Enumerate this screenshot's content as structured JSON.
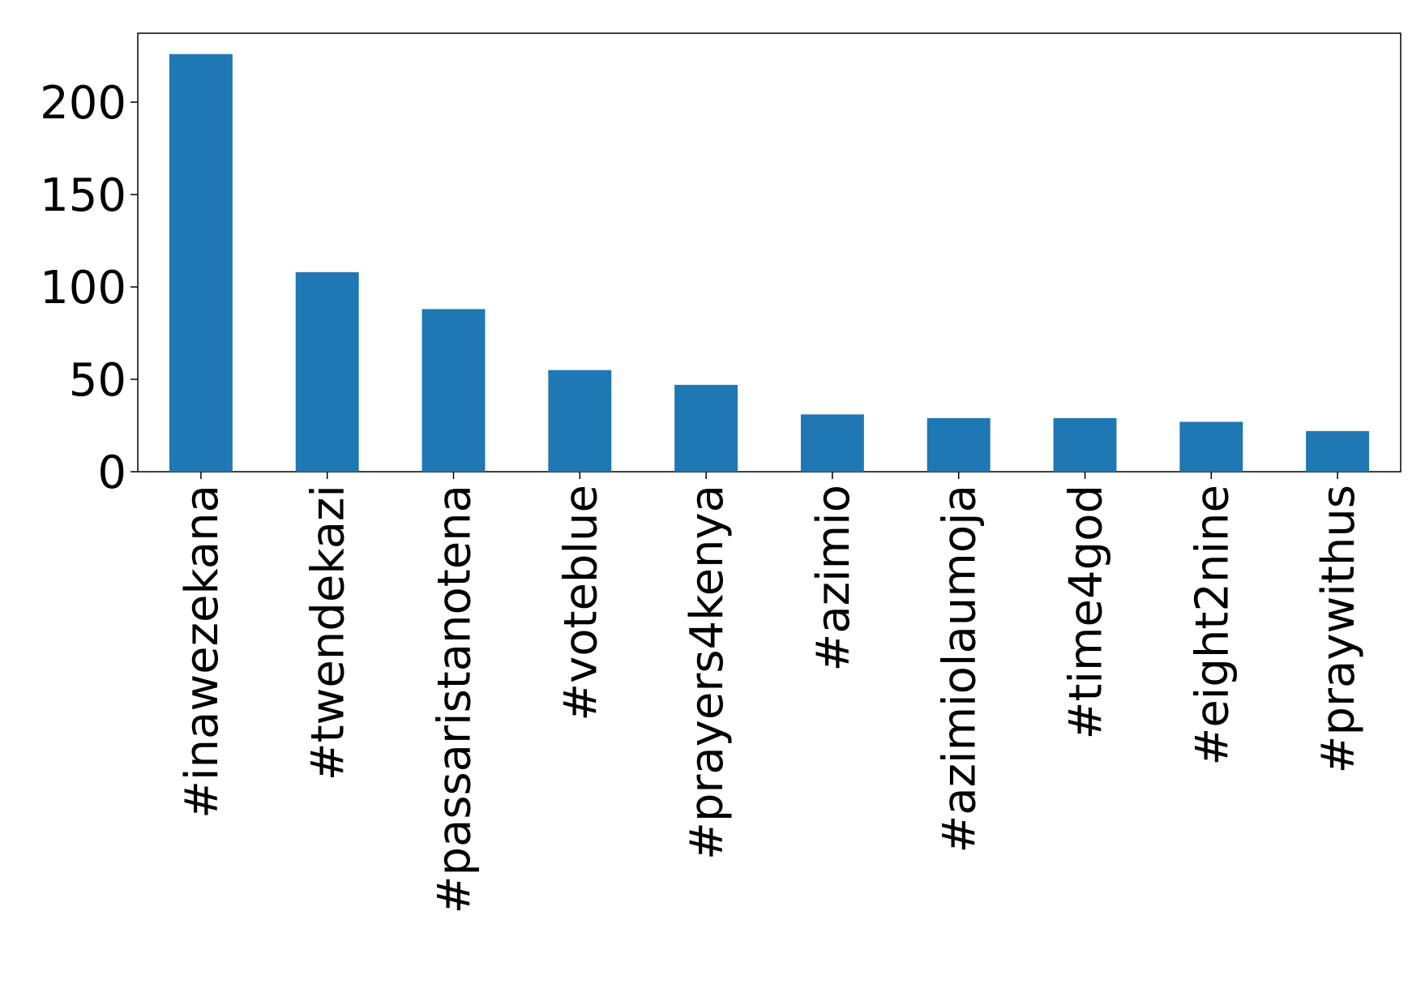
{
  "chart_data": {
    "type": "bar",
    "categories": [
      "#inawezekana",
      "#twendekazi",
      "#passaristanotena",
      "#voteblue",
      "#prayers4kenya",
      "#azimio",
      "#azimiolaumoja",
      "#time4god",
      "#eight2nine",
      "#praywithus"
    ],
    "values": [
      226,
      108,
      88,
      55,
      47,
      31,
      29,
      29,
      27,
      22
    ],
    "color": "#1f77b4",
    "ylim": [
      0,
      237.3
    ],
    "yticks": [
      0,
      50,
      100,
      150,
      200
    ],
    "grid": false
  }
}
